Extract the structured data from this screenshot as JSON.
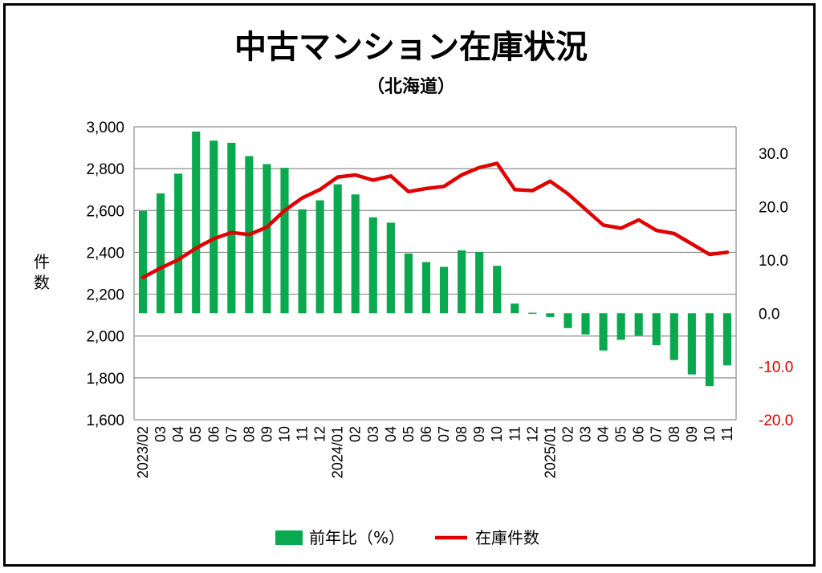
{
  "chart_data": {
    "type": "bar",
    "title": "中古マンション在庫状況",
    "subtitle": "（北海道）",
    "ylabel_left": "件数",
    "ylabel_right": "",
    "ylim_left": [
      1600,
      3000
    ],
    "ylim_right": [
      -20,
      35
    ],
    "yticks_left": [
      "1,600",
      "1,800",
      "2,000",
      "2,200",
      "2,400",
      "2,600",
      "2,800",
      "3,000"
    ],
    "yticks_right": [
      "-20.0",
      "-10.0",
      "0.0",
      "10.0",
      "20.0",
      "30.0"
    ],
    "categories": [
      "2023/02",
      "03",
      "04",
      "05",
      "06",
      "07",
      "08",
      "09",
      "10",
      "11",
      "12",
      "2024/01",
      "02",
      "03",
      "04",
      "05",
      "06",
      "07",
      "08",
      "09",
      "10",
      "11",
      "12",
      "2025/01",
      "02",
      "03",
      "04",
      "05",
      "06",
      "07",
      "08",
      "09",
      "10",
      "11"
    ],
    "grid": true,
    "legend_position": "bottom",
    "series": [
      {
        "name": "前年比（%）",
        "type": "bar",
        "axis": "right",
        "color": "#0aa84f",
        "values": [
          19.2,
          22.5,
          26.2,
          34.1,
          32.4,
          32.0,
          29.5,
          28.0,
          27.3,
          19.5,
          21.2,
          24.2,
          22.3,
          18.0,
          17.0,
          11.2,
          9.6,
          8.7,
          11.8,
          11.5,
          8.9,
          1.8,
          0.1,
          -0.7,
          -2.8,
          -4.0,
          -7.0,
          -5.0,
          -4.2,
          -6.0,
          -8.8,
          -11.5,
          -13.7,
          -9.8
        ]
      },
      {
        "name": "在庫件数",
        "type": "line",
        "axis": "left",
        "color": "#e00000",
        "values": [
          2280,
          2325,
          2365,
          2420,
          2465,
          2495,
          2485,
          2520,
          2600,
          2660,
          2700,
          2760,
          2770,
          2745,
          2765,
          2690,
          2705,
          2715,
          2770,
          2805,
          2825,
          2700,
          2695,
          2740,
          2680,
          2605,
          2530,
          2515,
          2555,
          2505,
          2490,
          2440,
          2390,
          2400
        ]
      }
    ]
  }
}
